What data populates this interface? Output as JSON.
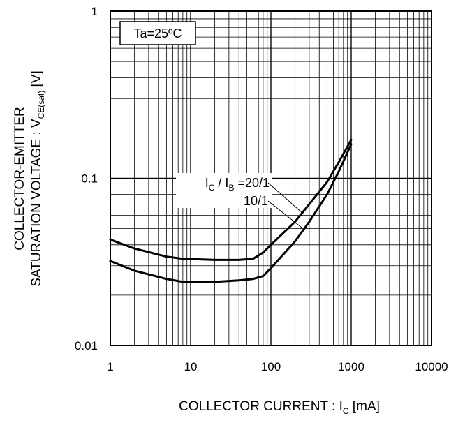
{
  "chart_data": {
    "type": "line",
    "x_scale": "log",
    "y_scale": "log",
    "xlim": [
      1,
      10000
    ],
    "ylim": [
      0.01,
      1
    ],
    "grid": true,
    "x_ticks": [
      "1",
      "10",
      "100",
      "1000",
      "10000"
    ],
    "y_ticks": [
      "1",
      "0.1",
      "0.01"
    ],
    "xlabel": {
      "main": "COLLECTOR CURRENT : I",
      "sub": "C",
      "tail": " [mA]"
    },
    "ylabel": {
      "line1": "COLLECTOR-EMITTER",
      "line2_main": "SATURATION VOLTAGE : V",
      "line2_sub": "CE(sat)",
      "line2_tail": " [V]"
    },
    "condition_label": "Ta=25ºC",
    "series_label": {
      "line1_i1": "I",
      "line1_s1": "C",
      "line1_mid": " / I",
      "line1_s2": "B",
      "line1_ratio": " =20/1",
      "line2": "10/1"
    },
    "series": [
      {
        "name": "IC/IB=20/1",
        "x": [
          1,
          2,
          5,
          8,
          20,
          40,
          60,
          80,
          100,
          200,
          300,
          500,
          700,
          1000
        ],
        "y": [
          0.043,
          0.038,
          0.034,
          0.033,
          0.0325,
          0.0325,
          0.033,
          0.036,
          0.04,
          0.055,
          0.07,
          0.095,
          0.125,
          0.17
        ]
      },
      {
        "name": "IC/IB=10/1",
        "x": [
          1,
          2,
          5,
          8,
          20,
          40,
          60,
          80,
          100,
          200,
          300,
          500,
          700,
          1000
        ],
        "y": [
          0.032,
          0.028,
          0.025,
          0.024,
          0.024,
          0.0245,
          0.025,
          0.026,
          0.029,
          0.042,
          0.055,
          0.08,
          0.11,
          0.16
        ]
      }
    ]
  }
}
